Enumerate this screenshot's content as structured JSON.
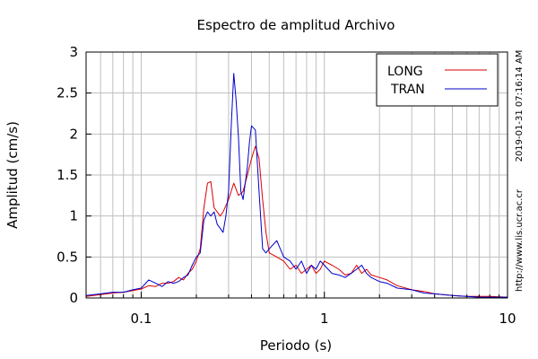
{
  "chart_data": {
    "type": "line",
    "title": "Espectro de amplitud Archivo",
    "xlabel": "Periodo (s)",
    "ylabel": "Amplitud (cm/s)",
    "x_scale": "log",
    "xlim": [
      0.05,
      10
    ],
    "ylim": [
      0,
      3
    ],
    "grid": true,
    "legend_position": "top-right",
    "x_ticks": [
      {
        "value": 0.1,
        "label": "0.1"
      },
      {
        "value": 1,
        "label": "1"
      },
      {
        "value": 10,
        "label": "10"
      }
    ],
    "y_ticks": [
      {
        "value": 0,
        "label": "0"
      },
      {
        "value": 0.5,
        "label": "0.5"
      },
      {
        "value": 1,
        "label": "1"
      },
      {
        "value": 1.5,
        "label": "1.5"
      },
      {
        "value": 2,
        "label": "2"
      },
      {
        "value": 2.5,
        "label": "2.5"
      },
      {
        "value": 3,
        "label": "3"
      }
    ],
    "series": [
      {
        "name": "LONG",
        "color": "#dd0000",
        "x": [
          0.05,
          0.06,
          0.07,
          0.08,
          0.09,
          0.1,
          0.11,
          0.12,
          0.13,
          0.14,
          0.15,
          0.16,
          0.17,
          0.18,
          0.19,
          0.2,
          0.21,
          0.22,
          0.23,
          0.24,
          0.25,
          0.26,
          0.27,
          0.28,
          0.3,
          0.32,
          0.34,
          0.36,
          0.38,
          0.4,
          0.42,
          0.44,
          0.46,
          0.48,
          0.5,
          0.55,
          0.6,
          0.65,
          0.7,
          0.75,
          0.8,
          0.85,
          0.9,
          0.95,
          1.0,
          1.1,
          1.2,
          1.3,
          1.4,
          1.5,
          1.6,
          1.7,
          1.8,
          2.0,
          2.2,
          2.5,
          3.0,
          3.5,
          4.0,
          5.0,
          6.0,
          7.0,
          8.0,
          10.0
        ],
        "y": [
          0.02,
          0.04,
          0.06,
          0.07,
          0.09,
          0.11,
          0.15,
          0.14,
          0.18,
          0.18,
          0.2,
          0.25,
          0.22,
          0.3,
          0.35,
          0.45,
          0.6,
          1.1,
          1.4,
          1.42,
          1.1,
          1.05,
          1.0,
          1.05,
          1.2,
          1.4,
          1.25,
          1.3,
          1.5,
          1.7,
          1.85,
          1.7,
          1.2,
          0.8,
          0.55,
          0.5,
          0.45,
          0.35,
          0.4,
          0.3,
          0.35,
          0.4,
          0.3,
          0.35,
          0.45,
          0.4,
          0.35,
          0.28,
          0.3,
          0.4,
          0.3,
          0.35,
          0.28,
          0.25,
          0.22,
          0.15,
          0.1,
          0.08,
          0.05,
          0.03,
          0.02,
          0.02,
          0.02,
          0.01
        ]
      },
      {
        "name": "TRAN",
        "color": "#0000cc",
        "x": [
          0.05,
          0.06,
          0.07,
          0.08,
          0.09,
          0.1,
          0.11,
          0.12,
          0.13,
          0.14,
          0.15,
          0.16,
          0.17,
          0.18,
          0.19,
          0.2,
          0.21,
          0.22,
          0.23,
          0.24,
          0.25,
          0.26,
          0.27,
          0.28,
          0.29,
          0.3,
          0.31,
          0.32,
          0.33,
          0.34,
          0.35,
          0.36,
          0.37,
          0.38,
          0.39,
          0.4,
          0.42,
          0.44,
          0.46,
          0.48,
          0.5,
          0.55,
          0.6,
          0.65,
          0.7,
          0.75,
          0.8,
          0.85,
          0.9,
          0.95,
          1.0,
          1.1,
          1.2,
          1.3,
          1.4,
          1.5,
          1.6,
          1.7,
          1.8,
          2.0,
          2.2,
          2.5,
          3.0,
          3.5,
          4.0,
          5.0,
          6.0,
          7.0,
          8.0,
          10.0
        ],
        "y": [
          0.03,
          0.05,
          0.07,
          0.07,
          0.1,
          0.12,
          0.22,
          0.18,
          0.14,
          0.2,
          0.18,
          0.2,
          0.25,
          0.28,
          0.4,
          0.5,
          0.55,
          0.95,
          1.05,
          1.0,
          1.05,
          0.9,
          0.85,
          0.8,
          1.0,
          1.3,
          2.1,
          2.74,
          2.4,
          1.95,
          1.3,
          1.2,
          1.4,
          1.6,
          1.9,
          2.1,
          2.05,
          1.3,
          0.6,
          0.55,
          0.6,
          0.7,
          0.5,
          0.45,
          0.35,
          0.45,
          0.3,
          0.4,
          0.35,
          0.45,
          0.4,
          0.3,
          0.28,
          0.25,
          0.3,
          0.35,
          0.4,
          0.3,
          0.25,
          0.2,
          0.18,
          0.12,
          0.1,
          0.06,
          0.05,
          0.03,
          0.02,
          0.01,
          0.01,
          0.01
        ]
      }
    ],
    "side_labels": {
      "timestamp": "2019-01-31 07:16:14 AM",
      "url": "http://www.lis.ucr.ac.cr"
    }
  }
}
